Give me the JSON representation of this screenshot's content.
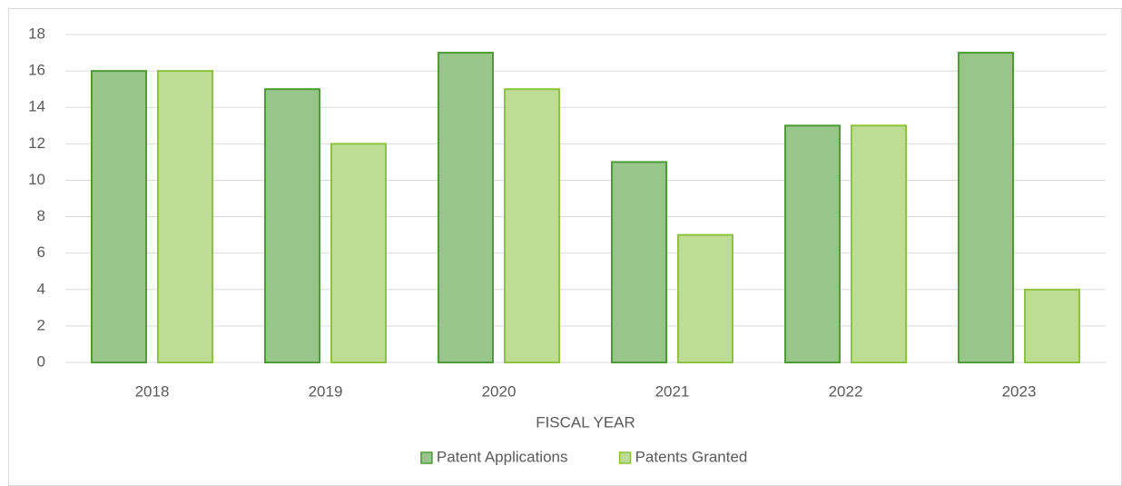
{
  "chart_data": {
    "type": "bar",
    "categories": [
      "2018",
      "2019",
      "2020",
      "2021",
      "2022",
      "2023"
    ],
    "series": [
      {
        "name": "Patent Applications",
        "color": "#98c68a",
        "edgecolor": "#4e9b38",
        "values": [
          16,
          15,
          17,
          11,
          13,
          17
        ]
      },
      {
        "name": "Patents Granted",
        "color": "#bddc94",
        "edgecolor": "#8dc33f",
        "values": [
          16,
          12,
          15,
          7,
          13,
          4
        ]
      }
    ],
    "xlabel": "FISCAL YEAR",
    "ylim": [
      0,
      18
    ],
    "yticks": [
      0,
      2,
      4,
      6,
      8,
      10,
      12,
      14,
      16,
      18
    ],
    "grid": true,
    "legend": "bottom"
  }
}
